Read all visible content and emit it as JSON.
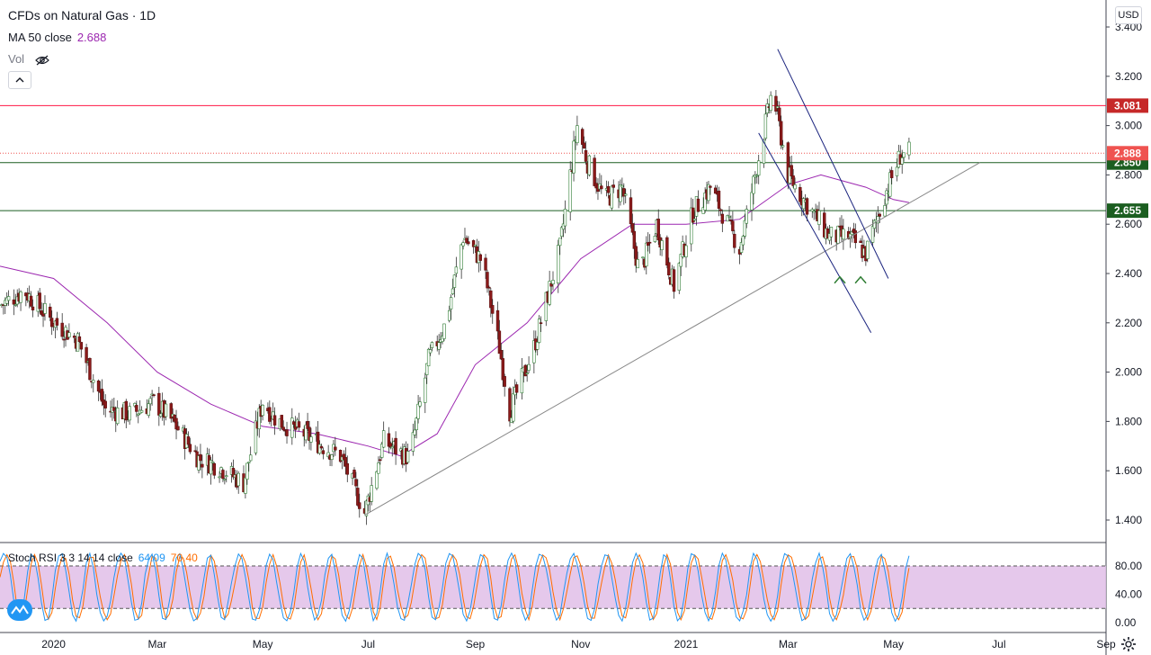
{
  "header": {
    "title": "CFDs on Natural Gas · 1D",
    "ma_label": "MA 50 close",
    "ma_value": "2.688",
    "vol_label": "Vol"
  },
  "stoch": {
    "label": "Stoch RSI 3 3 14 14 close",
    "k_value": "64.09",
    "d_value": "70.40",
    "ticks": [
      "80.00",
      "40.00",
      "0.00"
    ],
    "levels": [
      80,
      20
    ]
  },
  "currency": "USD",
  "icons": {
    "visibility": "eye-off-icon",
    "collapse": "chevron-up-icon",
    "logo": "tradingview-logo-icon",
    "settings": "gear-icon"
  },
  "colors": {
    "up": "#26a69a",
    "down": "#ef5350",
    "candle_body_up": "#ffffff",
    "candle_body_down": "#8b1a1a",
    "resistance": "#ff1744",
    "support": "#1b5e20",
    "ma": "#9c27b0",
    "stoch_k": "#2196f3",
    "stoch_d": "#ff6d00",
    "stoch_band": "#e1bee7",
    "channel": "#1a237e",
    "trend": "#888888"
  },
  "chart_data": {
    "type": "candlestick",
    "title": "CFDs on Natural Gas · 1D",
    "x_ticks": [
      "2020",
      "Mar",
      "May",
      "Jul",
      "Sep",
      "Nov",
      "2021",
      "Mar",
      "May",
      "Jul",
      "Sep"
    ],
    "x_tick_dates": [
      "2020-01-01",
      "2020-03-01",
      "2020-05-01",
      "2020-07-01",
      "2020-09-01",
      "2020-11-01",
      "2021-01-01",
      "2021-03-01",
      "2021-05-01",
      "2021-07-01",
      "2021-09-01"
    ],
    "y_ticks": [
      3.4,
      3.2,
      3.0,
      2.8,
      2.6,
      2.4,
      2.2,
      2.0,
      1.8,
      1.6,
      1.4
    ],
    "y_tick_labels": [
      "3.400",
      "3.200",
      "3.000",
      "2.800",
      "2.600",
      "2.400",
      "2.200",
      "2.000",
      "1.800",
      "1.600",
      "1.400"
    ],
    "x_range": [
      "2019-12-01",
      "2021-09-01"
    ],
    "ylim": [
      1.3,
      3.42
    ],
    "close_path": [
      [
        "2019-12-01",
        2.27
      ],
      [
        "2019-12-15",
        2.33
      ],
      [
        "2019-12-31",
        2.21
      ],
      [
        "2020-01-15",
        2.13
      ],
      [
        "2020-01-31",
        1.85
      ],
      [
        "2020-02-15",
        1.83
      ],
      [
        "2020-02-28",
        1.88
      ],
      [
        "2020-03-10",
        1.8
      ],
      [
        "2020-03-25",
        1.65
      ],
      [
        "2020-04-05",
        1.62
      ],
      [
        "2020-04-20",
        1.55
      ],
      [
        "2020-05-01",
        1.88
      ],
      [
        "2020-05-10",
        1.8
      ],
      [
        "2020-05-25",
        1.75
      ],
      [
        "2020-06-05",
        1.7
      ],
      [
        "2020-06-15",
        1.66
      ],
      [
        "2020-06-26",
        1.48
      ],
      [
        "2020-06-29",
        1.43
      ],
      [
        "2020-07-10",
        1.72
      ],
      [
        "2020-07-25",
        1.65
      ],
      [
        "2020-08-05",
        2.05
      ],
      [
        "2020-08-15",
        2.2
      ],
      [
        "2020-08-25",
        2.55
      ],
      [
        "2020-09-05",
        2.45
      ],
      [
        "2020-09-15",
        2.1
      ],
      [
        "2020-09-21",
        1.84
      ],
      [
        "2020-10-05",
        2.1
      ],
      [
        "2020-10-20",
        2.5
      ],
      [
        "2020-10-30",
        3.0
      ],
      [
        "2020-11-05",
        2.85
      ],
      [
        "2020-11-15",
        2.7
      ],
      [
        "2020-11-25",
        2.75
      ],
      [
        "2020-12-05",
        2.4
      ],
      [
        "2020-12-15",
        2.6
      ],
      [
        "2020-12-25",
        2.35
      ],
      [
        "2021-01-05",
        2.65
      ],
      [
        "2021-01-15",
        2.75
      ],
      [
        "2021-02-01",
        2.5
      ],
      [
        "2021-02-10",
        2.8
      ],
      [
        "2021-02-20",
        3.15
      ],
      [
        "2021-03-01",
        2.8
      ],
      [
        "2021-03-10",
        2.7
      ],
      [
        "2021-03-25",
        2.55
      ],
      [
        "2021-04-05",
        2.55
      ],
      [
        "2021-04-15",
        2.48
      ],
      [
        "2021-04-25",
        2.7
      ],
      [
        "2021-05-05",
        2.88
      ],
      [
        "2021-05-10",
        2.888
      ]
    ],
    "ma50_path": [
      [
        "2019-12-01",
        2.43
      ],
      [
        "2020-01-01",
        2.38
      ],
      [
        "2020-02-01",
        2.2
      ],
      [
        "2020-03-01",
        2.0
      ],
      [
        "2020-04-01",
        1.87
      ],
      [
        "2020-05-01",
        1.78
      ],
      [
        "2020-06-01",
        1.75
      ],
      [
        "2020-07-01",
        1.7
      ],
      [
        "2020-07-20",
        1.66
      ],
      [
        "2020-08-10",
        1.75
      ],
      [
        "2020-09-01",
        2.03
      ],
      [
        "2020-10-01",
        2.2
      ],
      [
        "2020-11-01",
        2.46
      ],
      [
        "2020-12-01",
        2.6
      ],
      [
        "2021-01-01",
        2.6
      ],
      [
        "2021-02-01",
        2.62
      ],
      [
        "2021-03-01",
        2.76
      ],
      [
        "2021-03-20",
        2.8
      ],
      [
        "2021-04-15",
        2.75
      ],
      [
        "2021-05-01",
        2.7
      ],
      [
        "2021-05-10",
        2.688
      ]
    ],
    "horizontal_levels": [
      {
        "value": 3.081,
        "label": "3.081",
        "kind": "resistance"
      },
      {
        "value": 2.85,
        "label": "2.850",
        "kind": "support"
      },
      {
        "value": 2.655,
        "label": "2.655",
        "kind": "support"
      }
    ],
    "last_price": {
      "value": 2.888,
      "label": "2.888"
    },
    "trendlines": [
      {
        "kind": "trend",
        "from": [
          "2020-06-29",
          1.42
        ],
        "to": [
          "2021-06-20",
          2.85
        ]
      },
      {
        "kind": "channel",
        "from": [
          "2021-02-23",
          3.31
        ],
        "to": [
          "2021-04-28",
          2.38
        ]
      },
      {
        "kind": "channel",
        "from": [
          "2021-02-12",
          2.97
        ],
        "to": [
          "2021-04-18",
          2.16
        ]
      }
    ],
    "pattern_marks": [
      {
        "date": "2021-03-31",
        "value": 2.43
      },
      {
        "date": "2021-04-12",
        "value": 2.43
      }
    ],
    "stoch_rsi_range": [
      0,
      100
    ]
  }
}
